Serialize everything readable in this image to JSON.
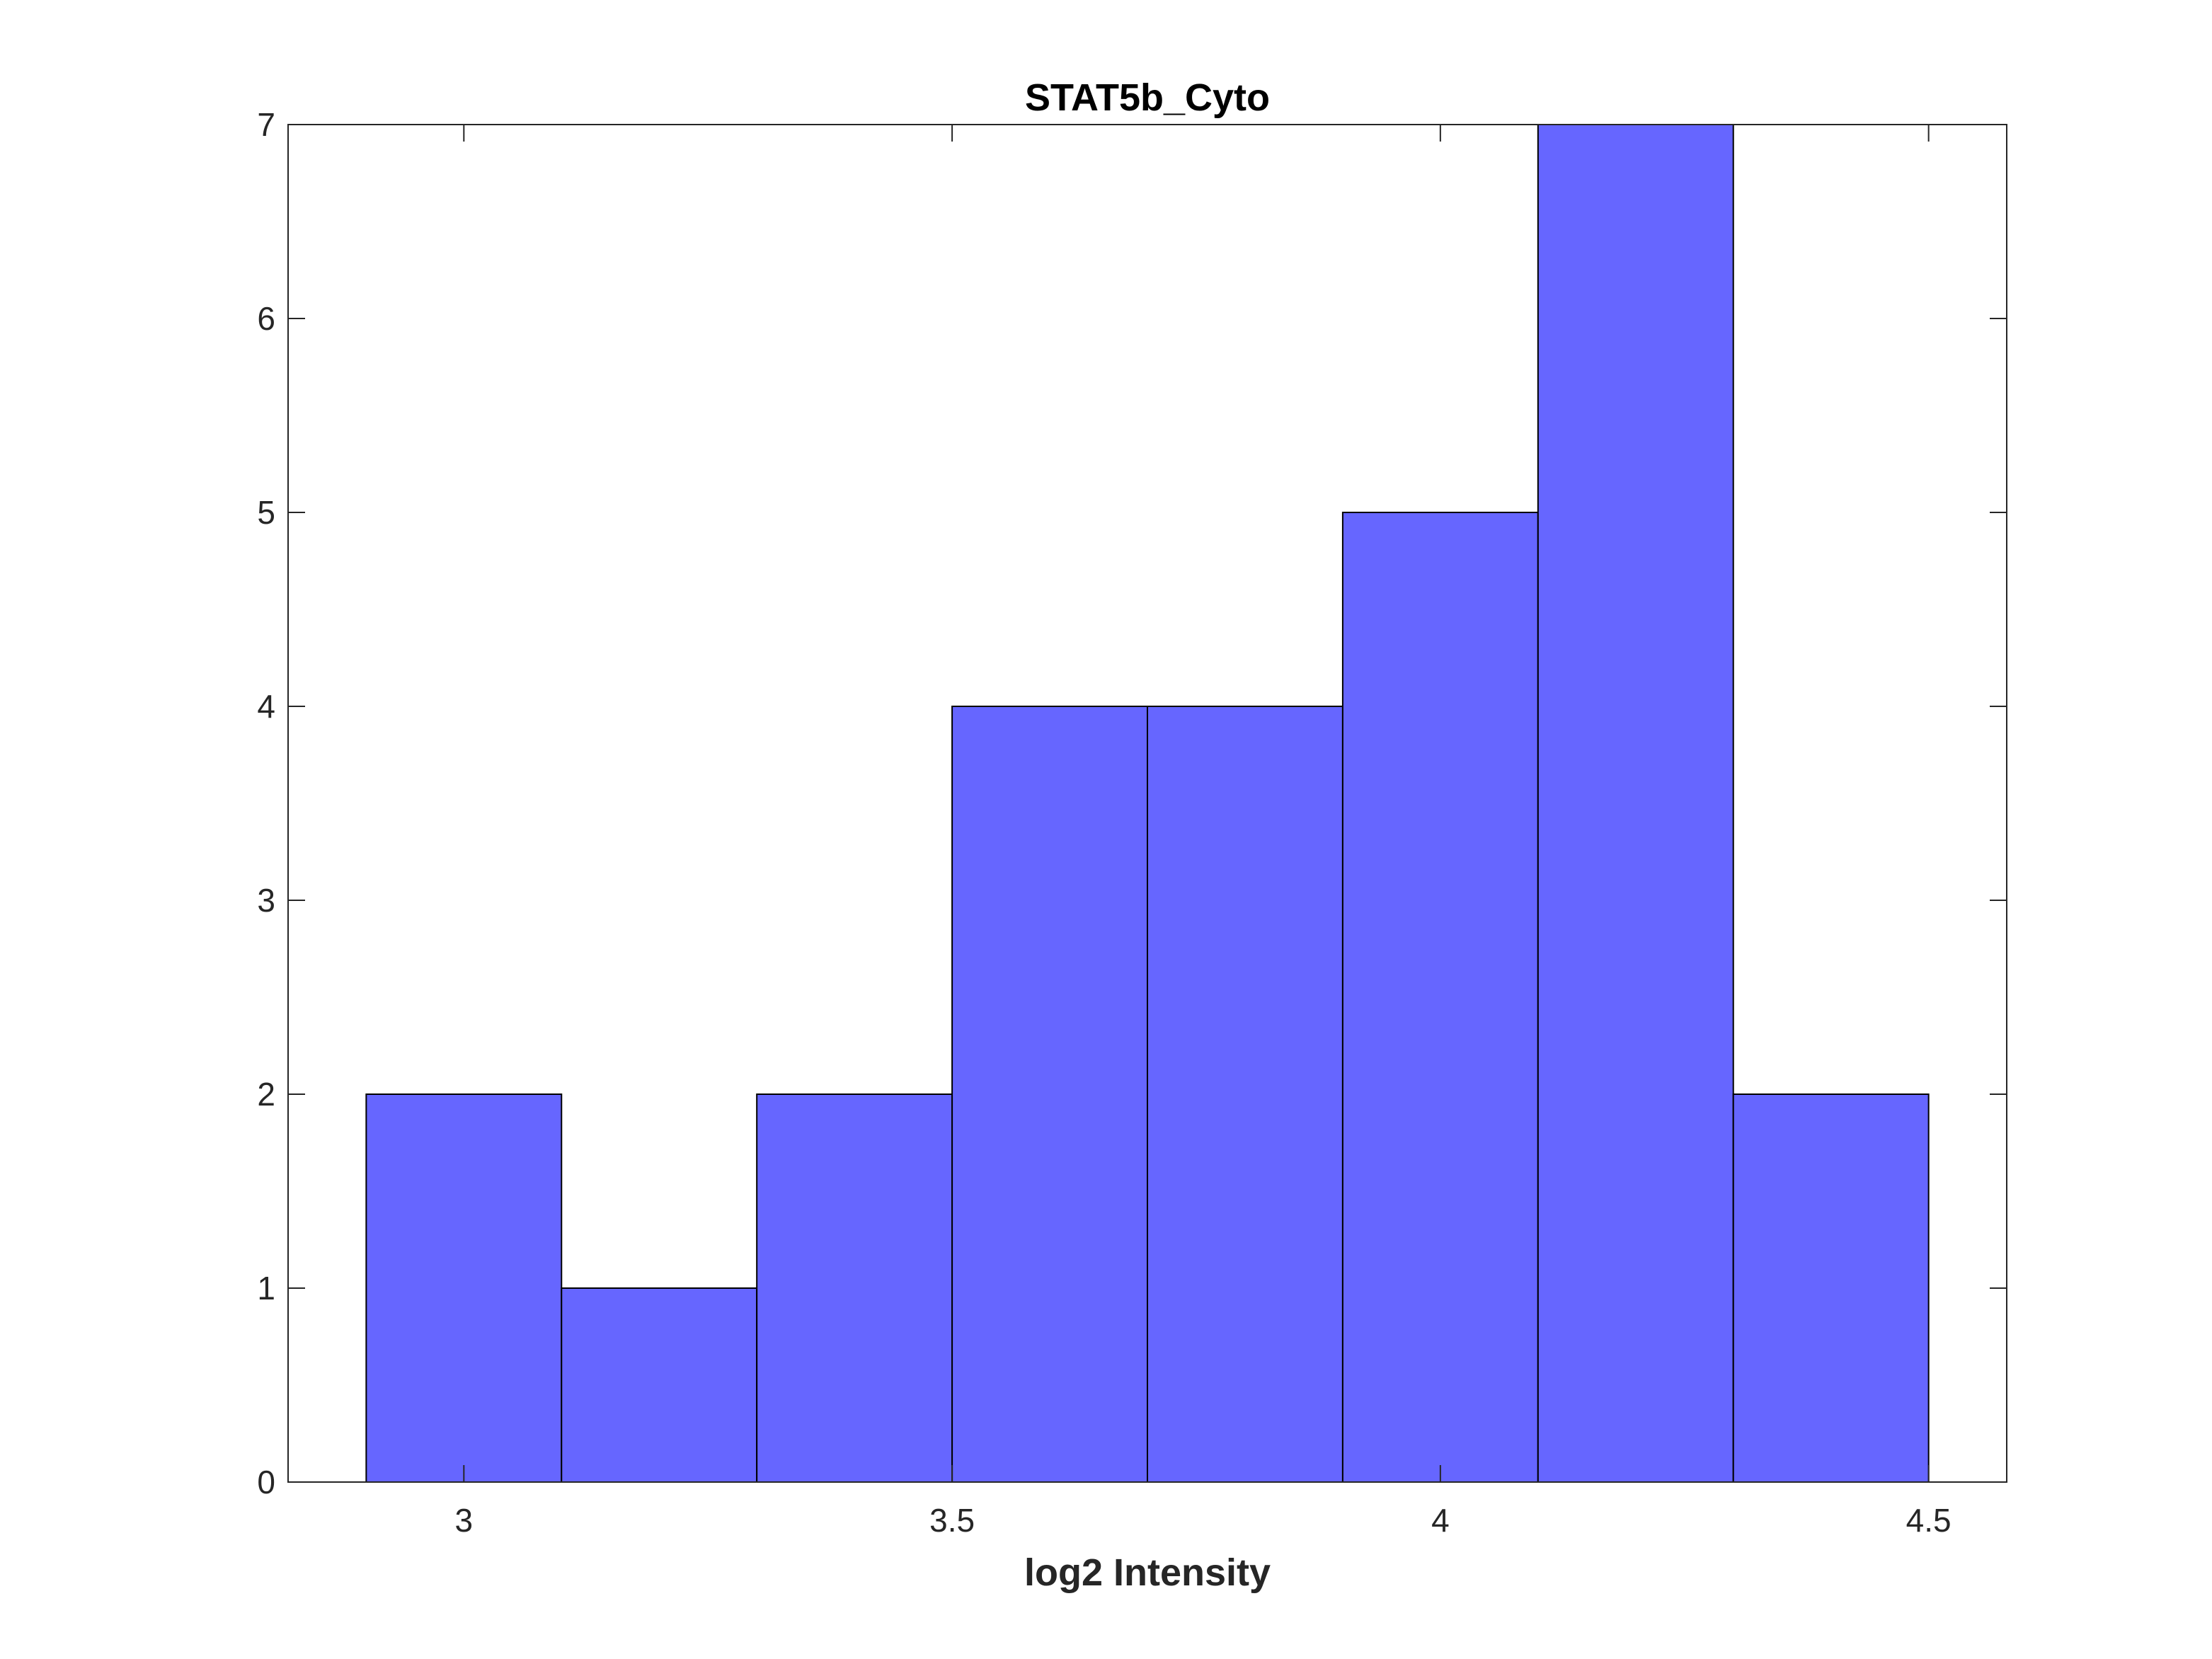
{
  "chart_data": {
    "type": "bar",
    "subtype": "histogram",
    "title": "STAT5b_Cyto",
    "xlabel": "log2 Intensity",
    "ylabel": "",
    "xlim": [
      2.82,
      4.58
    ],
    "ylim": [
      0,
      7
    ],
    "xticks": [
      3,
      3.5,
      4,
      4.5
    ],
    "xtick_labels": [
      "3",
      "3.5",
      "4",
      "4.5"
    ],
    "yticks": [
      0,
      1,
      2,
      3,
      4,
      5,
      6,
      7
    ],
    "ytick_labels": [
      "0",
      "1",
      "2",
      "3",
      "4",
      "5",
      "6",
      "7"
    ],
    "bin_edges": [
      2.9,
      3.1,
      3.3,
      3.5,
      3.7,
      3.9,
      4.1,
      4.3,
      4.5
    ],
    "counts": [
      2,
      1,
      2,
      4,
      4,
      5,
      7,
      2
    ],
    "bar_color": "#6666ff",
    "edge_color": "#000000",
    "grid": false,
    "box": true
  }
}
